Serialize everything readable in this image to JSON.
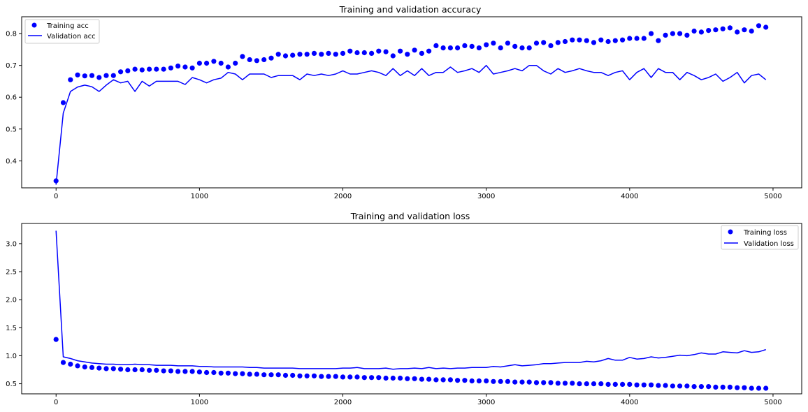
{
  "chart_data": [
    {
      "type": "scatter+line",
      "title": "Training and validation accuracy",
      "xlabel": "",
      "ylabel": "",
      "xlim": [
        -240,
        5200
      ],
      "ylim": [
        0.315,
        0.853
      ],
      "xticks": [
        0,
        1000,
        2000,
        3000,
        4000,
        5000
      ],
      "yticks": [
        0.4,
        0.5,
        0.6,
        0.7,
        0.8
      ],
      "grid": false,
      "legend_position": "upper left",
      "x": [
        0,
        50,
        100,
        150,
        200,
        250,
        300,
        350,
        400,
        450,
        500,
        550,
        600,
        650,
        700,
        750,
        800,
        850,
        900,
        950,
        1000,
        1050,
        1100,
        1150,
        1200,
        1250,
        1300,
        1350,
        1400,
        1450,
        1500,
        1550,
        1600,
        1650,
        1700,
        1750,
        1800,
        1850,
        1900,
        1950,
        2000,
        2050,
        2100,
        2150,
        2200,
        2250,
        2300,
        2350,
        2400,
        2450,
        2500,
        2550,
        2600,
        2650,
        2700,
        2750,
        2800,
        2850,
        2900,
        2950,
        3000,
        3050,
        3100,
        3150,
        3200,
        3250,
        3300,
        3350,
        3400,
        3450,
        3500,
        3550,
        3600,
        3650,
        3700,
        3750,
        3800,
        3850,
        3900,
        3950,
        4000,
        4050,
        4100,
        4150,
        4200,
        4250,
        4300,
        4350,
        4400,
        4450,
        4500,
        4550,
        4600,
        4650,
        4700,
        4750,
        4800,
        4850,
        4900,
        4950
      ],
      "series": [
        {
          "name": "Training acc",
          "style": "dots",
          "values": [
            0.337,
            0.583,
            0.655,
            0.67,
            0.667,
            0.668,
            0.662,
            0.668,
            0.668,
            0.68,
            0.683,
            0.688,
            0.686,
            0.688,
            0.688,
            0.688,
            0.692,
            0.698,
            0.695,
            0.692,
            0.707,
            0.707,
            0.713,
            0.707,
            0.695,
            0.707,
            0.728,
            0.718,
            0.715,
            0.718,
            0.723,
            0.735,
            0.73,
            0.732,
            0.735,
            0.735,
            0.738,
            0.735,
            0.738,
            0.735,
            0.738,
            0.745,
            0.74,
            0.74,
            0.738,
            0.745,
            0.743,
            0.73,
            0.745,
            0.735,
            0.748,
            0.738,
            0.745,
            0.762,
            0.755,
            0.755,
            0.755,
            0.762,
            0.76,
            0.755,
            0.765,
            0.77,
            0.755,
            0.77,
            0.76,
            0.755,
            0.755,
            0.77,
            0.772,
            0.762,
            0.772,
            0.775,
            0.78,
            0.78,
            0.778,
            0.772,
            0.78,
            0.775,
            0.778,
            0.78,
            0.785,
            0.785,
            0.785,
            0.8,
            0.778,
            0.795,
            0.8,
            0.8,
            0.795,
            0.808,
            0.805,
            0.81,
            0.812,
            0.815,
            0.818,
            0.805,
            0.812,
            0.808,
            0.825,
            0.82
          ]
        },
        {
          "name": "Validation acc",
          "style": "line",
          "values": [
            0.325,
            0.55,
            0.618,
            0.632,
            0.638,
            0.633,
            0.618,
            0.638,
            0.655,
            0.645,
            0.65,
            0.618,
            0.65,
            0.635,
            0.65,
            0.65,
            0.65,
            0.65,
            0.64,
            0.662,
            0.655,
            0.645,
            0.655,
            0.66,
            0.678,
            0.673,
            0.655,
            0.673,
            0.673,
            0.673,
            0.662,
            0.668,
            0.668,
            0.668,
            0.655,
            0.673,
            0.668,
            0.673,
            0.668,
            0.673,
            0.683,
            0.673,
            0.673,
            0.678,
            0.683,
            0.678,
            0.668,
            0.69,
            0.668,
            0.683,
            0.668,
            0.69,
            0.668,
            0.678,
            0.678,
            0.695,
            0.678,
            0.683,
            0.69,
            0.678,
            0.7,
            0.673,
            0.678,
            0.683,
            0.69,
            0.683,
            0.7,
            0.7,
            0.683,
            0.673,
            0.69,
            0.678,
            0.683,
            0.69,
            0.683,
            0.678,
            0.678,
            0.668,
            0.678,
            0.683,
            0.655,
            0.678,
            0.69,
            0.662,
            0.69,
            0.678,
            0.678,
            0.655,
            0.678,
            0.668,
            0.655,
            0.662,
            0.673,
            0.65,
            0.662,
            0.678,
            0.645,
            0.668,
            0.673,
            0.655
          ]
        }
      ]
    },
    {
      "type": "scatter+line",
      "title": "Training and validation loss",
      "xlabel": "",
      "ylabel": "",
      "xlim": [
        -240,
        5200
      ],
      "ylim": [
        0.32,
        3.36
      ],
      "xticks": [
        0,
        1000,
        2000,
        3000,
        4000,
        5000
      ],
      "yticks": [
        0.5,
        1.0,
        1.5,
        2.0,
        2.5,
        3.0
      ],
      "grid": false,
      "legend_position": "upper right",
      "x": [
        0,
        50,
        100,
        150,
        200,
        250,
        300,
        350,
        400,
        450,
        500,
        550,
        600,
        650,
        700,
        750,
        800,
        850,
        900,
        950,
        1000,
        1050,
        1100,
        1150,
        1200,
        1250,
        1300,
        1350,
        1400,
        1450,
        1500,
        1550,
        1600,
        1650,
        1700,
        1750,
        1800,
        1850,
        1900,
        1950,
        2000,
        2050,
        2100,
        2150,
        2200,
        2250,
        2300,
        2350,
        2400,
        2450,
        2500,
        2550,
        2600,
        2650,
        2700,
        2750,
        2800,
        2850,
        2900,
        2950,
        3000,
        3050,
        3100,
        3150,
        3200,
        3250,
        3300,
        3350,
        3400,
        3450,
        3500,
        3550,
        3600,
        3650,
        3700,
        3750,
        3800,
        3850,
        3900,
        3950,
        4000,
        4050,
        4100,
        4150,
        4200,
        4250,
        4300,
        4350,
        4400,
        4450,
        4500,
        4550,
        4600,
        4650,
        4700,
        4750,
        4800,
        4850,
        4900,
        4950
      ],
      "series": [
        {
          "name": "Training loss",
          "style": "dots",
          "values": [
            1.29,
            0.88,
            0.85,
            0.82,
            0.8,
            0.79,
            0.78,
            0.77,
            0.77,
            0.76,
            0.75,
            0.75,
            0.75,
            0.74,
            0.74,
            0.73,
            0.73,
            0.72,
            0.72,
            0.72,
            0.71,
            0.7,
            0.7,
            0.69,
            0.69,
            0.68,
            0.68,
            0.67,
            0.67,
            0.66,
            0.66,
            0.66,
            0.65,
            0.65,
            0.64,
            0.64,
            0.64,
            0.63,
            0.63,
            0.63,
            0.62,
            0.62,
            0.62,
            0.61,
            0.61,
            0.61,
            0.6,
            0.6,
            0.6,
            0.59,
            0.59,
            0.58,
            0.58,
            0.57,
            0.57,
            0.57,
            0.56,
            0.56,
            0.55,
            0.55,
            0.55,
            0.54,
            0.54,
            0.54,
            0.53,
            0.53,
            0.53,
            0.52,
            0.52,
            0.52,
            0.51,
            0.51,
            0.51,
            0.5,
            0.5,
            0.5,
            0.5,
            0.49,
            0.49,
            0.49,
            0.49,
            0.48,
            0.48,
            0.48,
            0.47,
            0.47,
            0.46,
            0.46,
            0.46,
            0.45,
            0.45,
            0.45,
            0.44,
            0.44,
            0.44,
            0.43,
            0.43,
            0.42,
            0.42,
            0.42
          ]
        },
        {
          "name": "Validation loss",
          "style": "line",
          "values": [
            3.23,
            0.98,
            0.95,
            0.91,
            0.89,
            0.87,
            0.86,
            0.85,
            0.85,
            0.84,
            0.84,
            0.85,
            0.84,
            0.84,
            0.83,
            0.83,
            0.83,
            0.82,
            0.82,
            0.82,
            0.81,
            0.81,
            0.8,
            0.8,
            0.8,
            0.8,
            0.8,
            0.79,
            0.79,
            0.78,
            0.78,
            0.78,
            0.78,
            0.78,
            0.77,
            0.77,
            0.77,
            0.77,
            0.77,
            0.77,
            0.78,
            0.78,
            0.79,
            0.77,
            0.77,
            0.77,
            0.78,
            0.76,
            0.77,
            0.77,
            0.78,
            0.77,
            0.79,
            0.77,
            0.78,
            0.77,
            0.78,
            0.78,
            0.79,
            0.79,
            0.79,
            0.81,
            0.8,
            0.82,
            0.84,
            0.82,
            0.83,
            0.84,
            0.86,
            0.86,
            0.87,
            0.88,
            0.88,
            0.88,
            0.9,
            0.89,
            0.91,
            0.95,
            0.92,
            0.92,
            0.97,
            0.94,
            0.95,
            0.98,
            0.96,
            0.97,
            0.99,
            1.01,
            1.0,
            1.02,
            1.05,
            1.03,
            1.03,
            1.07,
            1.06,
            1.05,
            1.09,
            1.06,
            1.07,
            1.11
          ]
        }
      ]
    }
  ],
  "colors": {
    "series": "#0000ff",
    "axis": "#000000",
    "background": "#ffffff"
  }
}
